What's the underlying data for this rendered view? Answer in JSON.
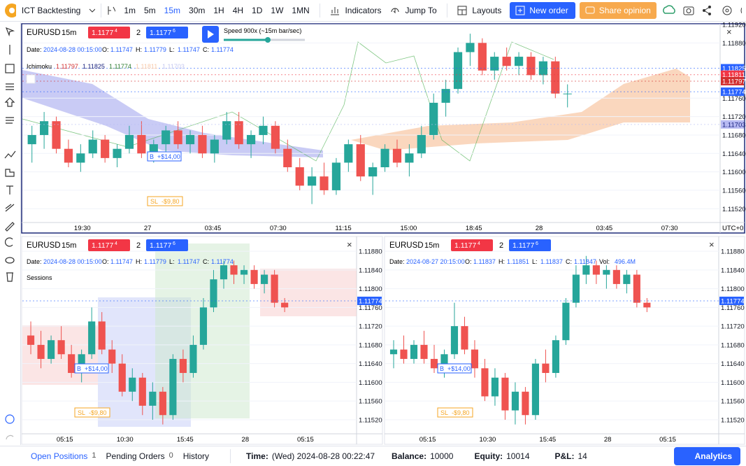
{
  "toolbar": {
    "app_name": "ICT Backtesting",
    "intervals": [
      "1m",
      "5m",
      "15m",
      "30m",
      "1H",
      "4H",
      "1D",
      "1W",
      "1MN"
    ],
    "indicators": "Indicators",
    "jump_to": "Jump To",
    "layouts": "Layouts",
    "new_order": "New order",
    "share_opinion": "Share opinion"
  },
  "panes": [
    {
      "symbol": "EURUSD",
      "interval": "15m",
      "sell_price": "1.1177",
      "sell_pip": "4",
      "quantity": "2",
      "buy_price": "1.1177",
      "buy_pip": "6",
      "speed": "Speed 900x (~15m bar/sec)",
      "date_label": "Date:",
      "date": "2024-08-28 00:15:00",
      "ohlc": [
        {
          "label": "O:",
          "value": "1.11747"
        },
        {
          "label": "H:",
          "value": "1.11779"
        },
        {
          "label": "L:",
          "value": "1.11747"
        },
        {
          "label": "C:",
          "value": "1.11774"
        }
      ],
      "indicator": {
        "name": "Ichimoku",
        "values": [
          {
            "text": "1.11797",
            "color": "#d32f2f"
          },
          {
            "text": "1.11825",
            "color": "#1a237e"
          },
          {
            "text": "1.11774",
            "color": "#2e7d32"
          },
          {
            "text": "1.11811",
            "color": "#f8c9a8"
          },
          {
            "text": "1.11703",
            "color": "#c5c8f0"
          }
        ]
      },
      "ylim": [
        1.1149,
        1.1192
      ],
      "yticks": [
        {
          "value": 1.1192,
          "label": "1.11920"
        },
        {
          "value": 1.1188,
          "label": "1.11880"
        },
        {
          "value": 1.1176,
          "label": "1.11760"
        },
        {
          "value": 1.1172,
          "label": "1.11720"
        },
        {
          "value": 1.1168,
          "label": "1.11680"
        },
        {
          "value": 1.1164,
          "label": "1.11640"
        },
        {
          "value": 1.116,
          "label": "1.11600"
        },
        {
          "value": 1.1156,
          "label": "1.11560"
        },
        {
          "value": 1.1152,
          "label": "1.11520"
        }
      ],
      "markers": [
        {
          "value": 1.11825,
          "color": "#2962ff"
        },
        {
          "value": 1.11811,
          "color": "#f23645"
        },
        {
          "value": 1.11797,
          "color": "#d32f2f"
        },
        {
          "value": 1.11774,
          "color": "#2962ff"
        },
        {
          "value": 1.11703,
          "color": "#b7baf2"
        }
      ],
      "times": [
        "19:30",
        "27",
        "03:45",
        "07:30",
        "11:15",
        "15:00",
        "18:45",
        "28",
        "03:45",
        "07:30"
      ],
      "timezone": "UTC+0",
      "buy_tag": "B",
      "buy_pnl": "+$14,00",
      "sl_tag": "SL",
      "sl_pnl": "-$9,80",
      "candles": [
        [
          1.1166,
          1.117,
          1.1162,
          1.1168
        ],
        [
          1.1168,
          1.1173,
          1.1165,
          1.1171
        ],
        [
          1.1171,
          1.1172,
          1.1164,
          1.1165
        ],
        [
          1.1165,
          1.1167,
          1.1161,
          1.1162
        ],
        [
          1.1162,
          1.1166,
          1.116,
          1.1164
        ],
        [
          1.1164,
          1.1169,
          1.1163,
          1.1167
        ],
        [
          1.1167,
          1.1168,
          1.1162,
          1.1163
        ],
        [
          1.1163,
          1.1166,
          1.1161,
          1.1165
        ],
        [
          1.1165,
          1.117,
          1.1164,
          1.1168
        ],
        [
          1.1168,
          1.1171,
          1.1163,
          1.1164
        ],
        [
          1.1164,
          1.1167,
          1.1162,
          1.1166
        ],
        [
          1.1166,
          1.117,
          1.1164,
          1.1169
        ],
        [
          1.1169,
          1.1171,
          1.1165,
          1.1166
        ],
        [
          1.1166,
          1.1169,
          1.1164,
          1.1168
        ],
        [
          1.1168,
          1.117,
          1.1163,
          1.1164
        ],
        [
          1.1164,
          1.1168,
          1.1162,
          1.1167
        ],
        [
          1.1167,
          1.1173,
          1.1166,
          1.1171
        ],
        [
          1.1171,
          1.1173,
          1.1165,
          1.1166
        ],
        [
          1.1166,
          1.1169,
          1.1163,
          1.1168
        ],
        [
          1.1168,
          1.1172,
          1.1166,
          1.117
        ],
        [
          1.117,
          1.1171,
          1.1164,
          1.1165
        ],
        [
          1.1165,
          1.1167,
          1.116,
          1.1161
        ],
        [
          1.1161,
          1.1163,
          1.1156,
          1.1157
        ],
        [
          1.1157,
          1.1161,
          1.1153,
          1.1159
        ],
        [
          1.1159,
          1.1162,
          1.1155,
          1.1156
        ],
        [
          1.1156,
          1.1163,
          1.1155,
          1.1162
        ],
        [
          1.1162,
          1.1167,
          1.116,
          1.1166
        ],
        [
          1.1166,
          1.1168,
          1.1158,
          1.1159
        ],
        [
          1.1159,
          1.1162,
          1.1155,
          1.1161
        ],
        [
          1.1161,
          1.1166,
          1.116,
          1.1165
        ],
        [
          1.1165,
          1.1167,
          1.1161,
          1.1162
        ],
        [
          1.1162,
          1.1166,
          1.1159,
          1.1164
        ],
        [
          1.1164,
          1.117,
          1.1163,
          1.1168
        ],
        [
          1.1168,
          1.1177,
          1.1167,
          1.1175
        ],
        [
          1.1175,
          1.118,
          1.1172,
          1.1178
        ],
        [
          1.1178,
          1.1187,
          1.1177,
          1.1186
        ],
        [
          1.1186,
          1.119,
          1.1183,
          1.1188
        ],
        [
          1.1188,
          1.1189,
          1.1181,
          1.1182
        ],
        [
          1.1182,
          1.1186,
          1.118,
          1.1185
        ],
        [
          1.1185,
          1.1187,
          1.1182,
          1.1183
        ],
        [
          1.1183,
          1.1186,
          1.1181,
          1.1185
        ],
        [
          1.1185,
          1.1186,
          1.118,
          1.1181
        ],
        [
          1.1181,
          1.1185,
          1.1179,
          1.1184
        ],
        [
          1.1184,
          1.1185,
          1.1176,
          1.1177
        ],
        [
          1.1177,
          1.1179,
          1.1174,
          1.1177
        ]
      ]
    },
    {
      "symbol": "EURUSD",
      "interval": "15m",
      "sell_price": "1.1177",
      "sell_pip": "4",
      "quantity": "2",
      "buy_price": "1.1177",
      "buy_pip": "6",
      "date_label": "Date:",
      "date": "2024-08-28 00:15:00",
      "ohlc": [
        {
          "label": "O:",
          "value": "1.11747"
        },
        {
          "label": "H:",
          "value": "1.11779"
        },
        {
          "label": "L:",
          "value": "1.11747"
        },
        {
          "label": "C:",
          "value": "1.11774"
        }
      ],
      "sessions": "Sessions",
      "ylim": [
        1.1149,
        1.1191
      ],
      "yticks": [
        {
          "value": 1.1188,
          "label": "1.11880"
        },
        {
          "value": 1.1184,
          "label": "1.11840"
        },
        {
          "value": 1.118,
          "label": "1.11800"
        },
        {
          "value": 1.1176,
          "label": "1.11760"
        },
        {
          "value": 1.1172,
          "label": "1.11720"
        },
        {
          "value": 1.1168,
          "label": "1.11680"
        },
        {
          "value": 1.1164,
          "label": "1.11640"
        },
        {
          "value": 1.116,
          "label": "1.11600"
        },
        {
          "value": 1.1156,
          "label": "1.11560"
        },
        {
          "value": 1.1152,
          "label": "1.11520"
        }
      ],
      "markers": [
        {
          "value": 1.11774,
          "color": "#2962ff"
        }
      ],
      "times": [
        "05:15",
        "10:30",
        "15:45",
        "28",
        "05:15"
      ],
      "buy_tag": "B",
      "buy_pnl": "+$14,00",
      "sl_tag": "SL",
      "sl_pnl": "-$9,80",
      "candles": [
        [
          1.117,
          1.1173,
          1.1166,
          1.1168
        ],
        [
          1.1168,
          1.1171,
          1.1163,
          1.1165
        ],
        [
          1.1165,
          1.117,
          1.1164,
          1.1169
        ],
        [
          1.1169,
          1.1172,
          1.1165,
          1.1166
        ],
        [
          1.1166,
          1.1168,
          1.1161,
          1.1162
        ],
        [
          1.1162,
          1.1167,
          1.116,
          1.1166
        ],
        [
          1.1166,
          1.1176,
          1.1165,
          1.1173
        ],
        [
          1.1173,
          1.1175,
          1.1166,
          1.1167
        ],
        [
          1.1167,
          1.1169,
          1.1162,
          1.1164
        ],
        [
          1.1164,
          1.1166,
          1.1157,
          1.1158
        ],
        [
          1.1158,
          1.1163,
          1.1156,
          1.1161
        ],
        [
          1.1161,
          1.1162,
          1.1153,
          1.1155
        ],
        [
          1.1155,
          1.116,
          1.1152,
          1.1158
        ],
        [
          1.1158,
          1.1159,
          1.1151,
          1.1153
        ],
        [
          1.1153,
          1.1166,
          1.1152,
          1.1165
        ],
        [
          1.1165,
          1.1167,
          1.116,
          1.1162
        ],
        [
          1.1162,
          1.117,
          1.1161,
          1.1168
        ],
        [
          1.1168,
          1.1178,
          1.1167,
          1.1176
        ],
        [
          1.1176,
          1.1184,
          1.1175,
          1.1182
        ],
        [
          1.1182,
          1.1186,
          1.118,
          1.1185
        ],
        [
          1.1185,
          1.1186,
          1.1181,
          1.1183
        ],
        [
          1.1183,
          1.1185,
          1.1181,
          1.1184
        ],
        [
          1.1184,
          1.1185,
          1.118,
          1.1181
        ],
        [
          1.1181,
          1.1184,
          1.1179,
          1.1183
        ],
        [
          1.1183,
          1.1184,
          1.1176,
          1.1177
        ],
        [
          1.1177,
          1.1178,
          1.1175,
          1.1176
        ]
      ]
    },
    {
      "symbol": "EURUSD",
      "interval": "15m",
      "sell_price": "1.1177",
      "sell_pip": "4",
      "quantity": "2",
      "buy_price": "1.1177",
      "buy_pip": "6",
      "date_label": "Date:",
      "date": "2024-08-27 20:15:00",
      "ohlc": [
        {
          "label": "O:",
          "value": "1.11837"
        },
        {
          "label": "H:",
          "value": "1.11851"
        },
        {
          "label": "L:",
          "value": "1.11837"
        },
        {
          "label": "C:",
          "value": "1.11847"
        },
        {
          "label": "Vol:",
          "value": "496.4M"
        }
      ],
      "ylim": [
        1.1149,
        1.1191
      ],
      "yticks": [
        {
          "value": 1.1188,
          "label": "1.11880"
        },
        {
          "value": 1.1184,
          "label": "1.11840"
        },
        {
          "value": 1.118,
          "label": "1.11800"
        },
        {
          "value": 1.1176,
          "label": "1.11760"
        },
        {
          "value": 1.1172,
          "label": "1.11720"
        },
        {
          "value": 1.1168,
          "label": "1.11680"
        },
        {
          "value": 1.1164,
          "label": "1.11640"
        },
        {
          "value": 1.116,
          "label": "1.11600"
        },
        {
          "value": 1.1156,
          "label": "1.11560"
        },
        {
          "value": 1.1152,
          "label": "1.11520"
        }
      ],
      "markers": [
        {
          "value": 1.11774,
          "color": "#2962ff"
        }
      ],
      "times": [
        "05:15",
        "10:30",
        "15:45",
        "28",
        "05:15"
      ],
      "buy_tag": "B",
      "buy_pnl": "+$14,00",
      "sl_tag": "SL",
      "sl_pnl": "-$9,80",
      "candles": [
        [
          1.1166,
          1.1169,
          1.1163,
          1.1167
        ],
        [
          1.1167,
          1.117,
          1.1164,
          1.1165
        ],
        [
          1.1165,
          1.1169,
          1.1164,
          1.1168
        ],
        [
          1.1168,
          1.1171,
          1.1164,
          1.1165
        ],
        [
          1.1165,
          1.1168,
          1.1162,
          1.1163
        ],
        [
          1.1163,
          1.1167,
          1.1161,
          1.1166
        ],
        [
          1.1166,
          1.1177,
          1.1165,
          1.1172
        ],
        [
          1.1172,
          1.1174,
          1.1166,
          1.1167
        ],
        [
          1.1167,
          1.1169,
          1.1161,
          1.1163
        ],
        [
          1.1163,
          1.1165,
          1.1156,
          1.1157
        ],
        [
          1.1157,
          1.1163,
          1.1155,
          1.1161
        ],
        [
          1.1161,
          1.1162,
          1.1152,
          1.1154
        ],
        [
          1.1154,
          1.116,
          1.1151,
          1.1158
        ],
        [
          1.1158,
          1.1159,
          1.1151,
          1.1153
        ],
        [
          1.1153,
          1.1165,
          1.1152,
          1.1164
        ],
        [
          1.1164,
          1.1167,
          1.116,
          1.1162
        ],
        [
          1.1162,
          1.117,
          1.1161,
          1.1169
        ],
        [
          1.1169,
          1.1178,
          1.1168,
          1.1177
        ],
        [
          1.1177,
          1.1185,
          1.1176,
          1.1183
        ],
        [
          1.1183,
          1.1187,
          1.1181,
          1.1185
        ],
        [
          1.1185,
          1.1186,
          1.1181,
          1.1183
        ],
        [
          1.1183,
          1.1185,
          1.118,
          1.1184
        ],
        [
          1.1184,
          1.1185,
          1.118,
          1.1181
        ],
        [
          1.1181,
          1.1184,
          1.1179,
          1.1183
        ],
        [
          1.1183,
          1.1184,
          1.1176,
          1.1177
        ],
        [
          1.1177,
          1.1178,
          1.1175,
          1.1176
        ]
      ]
    }
  ],
  "bottom_bar": {
    "open_positions": "Open Positions",
    "open_count": "1",
    "pending_orders": "Pending Orders",
    "pending_count": "0",
    "history": "History",
    "time_label": "Time:",
    "time": "(Wed) 2024-08-28 00:22:47",
    "balance_label": "Balance:",
    "balance": "10000",
    "equity_label": "Equity:",
    "equity": "10014",
    "pnl_label": "P&L:",
    "pnl": "14",
    "analytics": "Analytics"
  }
}
